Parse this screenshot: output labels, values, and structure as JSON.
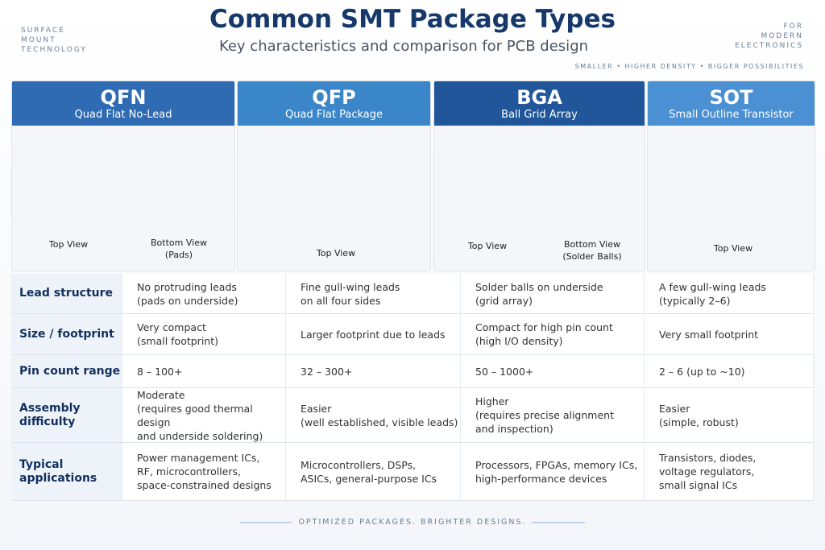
{
  "corner_left": [
    "SURFACE",
    "MOUNT",
    "TECHNOLOGY"
  ],
  "corner_right": [
    "FOR",
    "MODERN",
    "ELECTRONICS"
  ],
  "tagline": "SMALLER • HIGHER DENSITY • BIGGER POSSIBILITIES",
  "header": {
    "title": "Common SMT Package Types",
    "subtitle": "Key characteristics and comparison for PCB design"
  },
  "packages": [
    {
      "name": "QFN",
      "full_name": "Quad Flat No-Lead",
      "views": [
        [
          "Top View"
        ],
        [
          "Bottom View",
          "(Pads)"
        ]
      ]
    },
    {
      "name": "QFP",
      "full_name": "Quad Flat Package",
      "views": [
        [
          "Top View"
        ]
      ]
    },
    {
      "name": "BGA",
      "full_name": "Ball Grid Array",
      "views": [
        [
          "Top View"
        ],
        [
          "Bottom View",
          "(Solder Balls)"
        ]
      ]
    },
    {
      "name": "SOT",
      "full_name": "Small Outline Transistor",
      "views": [
        [
          "Top View"
        ]
      ]
    }
  ],
  "table": {
    "rows": [
      {
        "label": "Lead structure",
        "cells": [
          [
            "No protruding leads",
            "(pads on underside)"
          ],
          [
            "Fine gull-wing leads",
            "on all four sides"
          ],
          [
            "Solder balls on underside",
            "(grid array)"
          ],
          [
            "A few gull-wing leads",
            "(typically 2–6)"
          ]
        ]
      },
      {
        "label": "Size / footprint",
        "cells": [
          [
            "Very compact",
            "(small footprint)"
          ],
          [
            "Larger footprint due to leads"
          ],
          [
            "Compact for high pin count",
            "(high I/O density)"
          ],
          [
            "Very small footprint"
          ]
        ]
      },
      {
        "label": "Pin count range",
        "cells": [
          [
            "8 – 100+"
          ],
          [
            "32 – 300+"
          ],
          [
            "50 – 1000+"
          ],
          [
            "2 – 6 (up to ~10)"
          ]
        ]
      },
      {
        "label": "Assembly difficulty",
        "cells": [
          [
            "Moderate",
            "(requires good thermal design",
            "and underside soldering)"
          ],
          [
            "Easier",
            "(well established, visible leads)"
          ],
          [
            "Higher",
            "(requires precise alignment",
            "and inspection)"
          ],
          [
            "Easier",
            "(simple, robust)"
          ]
        ]
      },
      {
        "label": "Typical applications",
        "cells": [
          [
            "Power management ICs,",
            "RF, microcontrollers,",
            "space-constrained designs"
          ],
          [
            "Microcontrollers, DSPs,",
            "ASICs, general-purpose ICs"
          ],
          [
            "Processors, FPGAs, memory ICs,",
            "high-performance devices"
          ],
          [
            "Transistors, diodes,",
            "voltage regulators,",
            "small signal ICs"
          ]
        ]
      }
    ]
  },
  "footer": "OPTIMIZED PACKAGES. BRIGHTER DESIGNS."
}
